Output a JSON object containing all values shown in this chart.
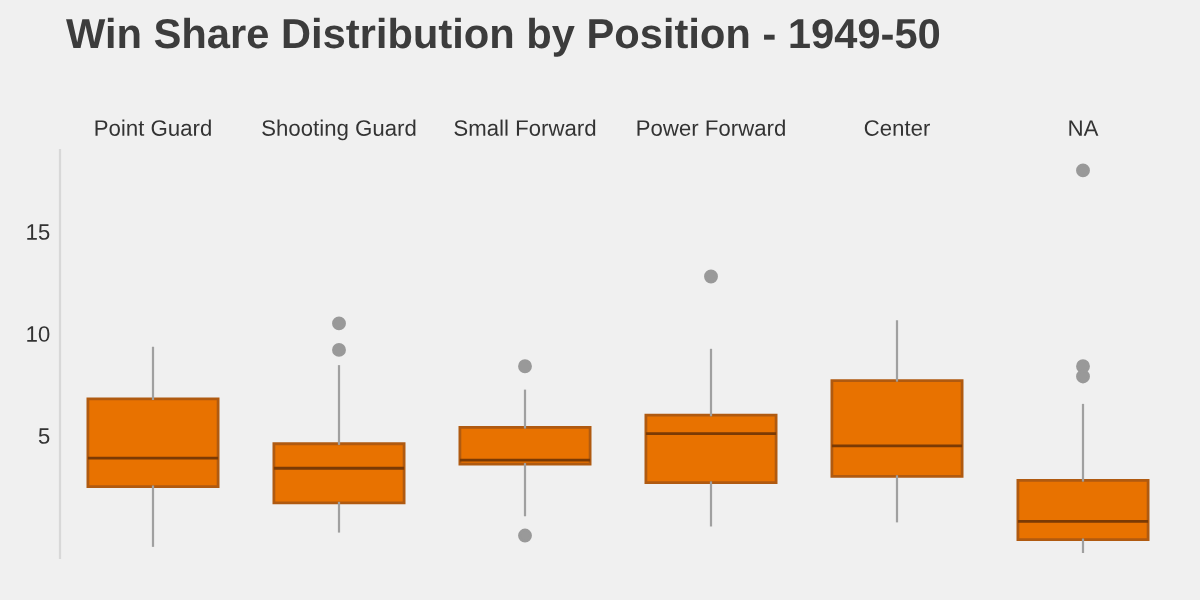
{
  "chart_data": {
    "type": "box",
    "title": "Win Share Distribution by Position - 1949-50",
    "categories": [
      "Point Guard",
      "Shooting Guard",
      "Small Forward",
      "Power Forward",
      "Center",
      "NA"
    ],
    "color": "#e87200",
    "boxes": [
      {
        "low": -0.4,
        "q1": 2.5,
        "median": 3.9,
        "q3": 6.8,
        "high": 9.3
      },
      {
        "low": 0.3,
        "q1": 1.7,
        "median": 3.4,
        "q3": 4.6,
        "high": 8.4,
        "outliers": [
          10.5,
          9.2
        ]
      },
      {
        "low": 1.1,
        "q1": 3.6,
        "median": 3.8,
        "q3": 5.4,
        "high": 7.2,
        "outliers": [
          8.4,
          0.1
        ]
      },
      {
        "low": 0.6,
        "q1": 2.7,
        "median": 5.1,
        "q3": 6.0,
        "high": 9.2,
        "outliers": [
          12.8
        ]
      },
      {
        "low": 0.8,
        "q1": 3.0,
        "median": 4.5,
        "q3": 7.7,
        "high": 10.6
      },
      {
        "low": -0.7,
        "q1": -0.1,
        "median": 0.8,
        "q3": 2.8,
        "high": 6.5,
        "outliers": [
          18.0,
          8.4,
          7.9
        ]
      }
    ],
    "ylim": [
      -1,
      19
    ],
    "yticks": [
      5,
      10,
      15
    ],
    "grid": false
  }
}
